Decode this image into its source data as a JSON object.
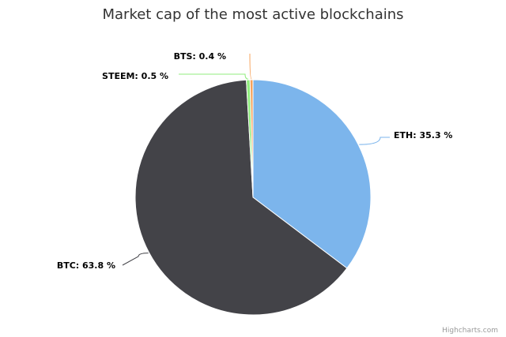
{
  "chart_data": {
    "type": "pie",
    "title": "Market cap of the most active blockchains",
    "categories": [
      "ETH",
      "BTC",
      "STEEM",
      "BTS"
    ],
    "values": [
      35.3,
      63.8,
      0.5,
      0.4
    ],
    "value_suffix": " %",
    "colors": [
      "#7cb5ec",
      "#434348",
      "#90ed7d",
      "#f7a35c"
    ],
    "data_labels": [
      "ETH: 35.3 %",
      "BTC: 63.8 %",
      "STEEM: 0.5 %",
      "BTS: 0.4 %"
    ],
    "legend": "none"
  },
  "credits": "Highcharts.com"
}
